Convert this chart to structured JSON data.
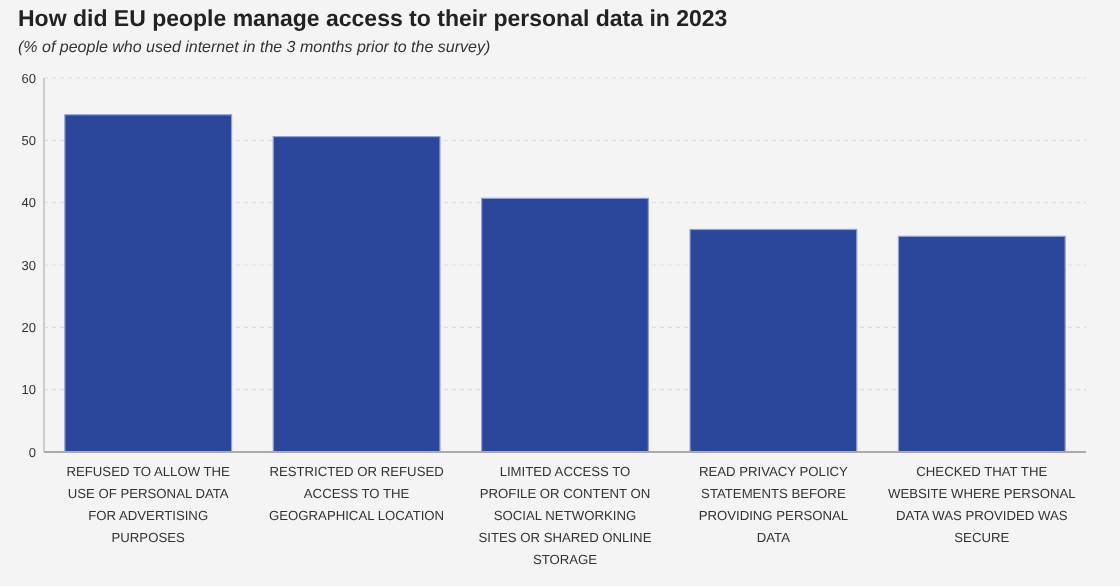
{
  "chart_data": {
    "type": "bar",
    "title": "How did EU people manage access to their personal data in 2023",
    "subtitle": "(% of people who used internet in the 3 months prior to the survey)",
    "categories": [
      "REFUSED TO ALLOW THE USE OF PERSONAL DATA FOR ADVERTISING PURPOSES",
      "RESTRICTED OR REFUSED ACCESS TO THE GEOGRAPHICAL LOCATION",
      "LIMITED ACCESS TO PROFILE OR CONTENT ON SOCIAL NETWORKING SITES OR SHARED ONLINE STORAGE",
      "READ PRIVACY POLICY STATEMENTS BEFORE PROVIDING PERSONAL DATA",
      "CHECKED THAT THE WEBSITE WHERE PERSONAL DATA WAS PROVIDED WAS SECURE"
    ],
    "values": [
      54.1,
      50.6,
      40.7,
      35.7,
      34.6
    ],
    "color": "#2a479c",
    "ylim": [
      0,
      60
    ],
    "yticks": [
      0,
      10,
      20,
      30,
      40,
      50,
      60
    ],
    "grid": "y"
  }
}
